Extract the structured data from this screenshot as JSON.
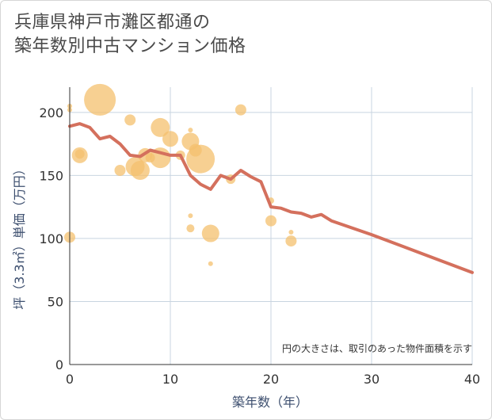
{
  "title_lines": [
    "兵庫県神戸市灘区都通の",
    "築年数別中古マンション価格"
  ],
  "note": "円の大きさは、取引のあった物件面積を示す",
  "colors": {
    "line": "#d4705d",
    "bubble": "#f4c06e",
    "grid": "#c8d4e0",
    "axis": "#333333"
  },
  "chart_data": {
    "type": "scatter",
    "xlabel": "築年数（年）",
    "ylabel": "坪（3.3㎡）単価（万円）",
    "xlim": [
      0,
      40
    ],
    "ylim": [
      0,
      220
    ],
    "xticks": [
      0,
      10,
      20,
      30,
      40
    ],
    "yticks": [
      0,
      50,
      100,
      150,
      200
    ],
    "grid": true,
    "trend_line": {
      "x": [
        0,
        1,
        2,
        3,
        4,
        5,
        6,
        7,
        8,
        9,
        10,
        11,
        12,
        13,
        14,
        15,
        16,
        17,
        18,
        19,
        20,
        21,
        22,
        23,
        24,
        25,
        26,
        30,
        35,
        40
      ],
      "y": [
        189,
        191,
        188,
        179,
        181,
        175,
        166,
        165,
        170,
        168,
        166,
        166,
        150,
        143,
        139,
        150,
        147,
        154,
        149,
        145,
        125,
        124,
        121,
        120,
        117,
        119,
        114,
        103,
        88,
        73
      ]
    },
    "bubbles": [
      {
        "x": 0,
        "y": 205,
        "size": 3
      },
      {
        "x": 0,
        "y": 202,
        "size": 3
      },
      {
        "x": 0,
        "y": 101,
        "size": 7
      },
      {
        "x": 1,
        "y": 166,
        "size": 10
      },
      {
        "x": 1,
        "y": 167,
        "size": 6
      },
      {
        "x": 3,
        "y": 210,
        "size": 20
      },
      {
        "x": 5,
        "y": 154,
        "size": 7
      },
      {
        "x": 6,
        "y": 194,
        "size": 7
      },
      {
        "x": 6.5,
        "y": 157,
        "size": 12
      },
      {
        "x": 7,
        "y": 154,
        "size": 12
      },
      {
        "x": 7.5,
        "y": 166,
        "size": 9
      },
      {
        "x": 8,
        "y": 164,
        "size": 6
      },
      {
        "x": 9,
        "y": 188,
        "size": 12
      },
      {
        "x": 9,
        "y": 164,
        "size": 13
      },
      {
        "x": 10,
        "y": 179,
        "size": 10
      },
      {
        "x": 11,
        "y": 166,
        "size": 6
      },
      {
        "x": 12,
        "y": 186,
        "size": 3
      },
      {
        "x": 12,
        "y": 177,
        "size": 11
      },
      {
        "x": 12.5,
        "y": 170,
        "size": 8
      },
      {
        "x": 13,
        "y": 163,
        "size": 18
      },
      {
        "x": 12,
        "y": 118,
        "size": 3
      },
      {
        "x": 12,
        "y": 108,
        "size": 5
      },
      {
        "x": 14,
        "y": 104,
        "size": 11
      },
      {
        "x": 14,
        "y": 80,
        "size": 3
      },
      {
        "x": 16,
        "y": 147,
        "size": 6
      },
      {
        "x": 17,
        "y": 202,
        "size": 7
      },
      {
        "x": 20,
        "y": 130,
        "size": 4
      },
      {
        "x": 20,
        "y": 114,
        "size": 7
      },
      {
        "x": 22,
        "y": 105,
        "size": 3
      },
      {
        "x": 22,
        "y": 98,
        "size": 7
      }
    ]
  }
}
